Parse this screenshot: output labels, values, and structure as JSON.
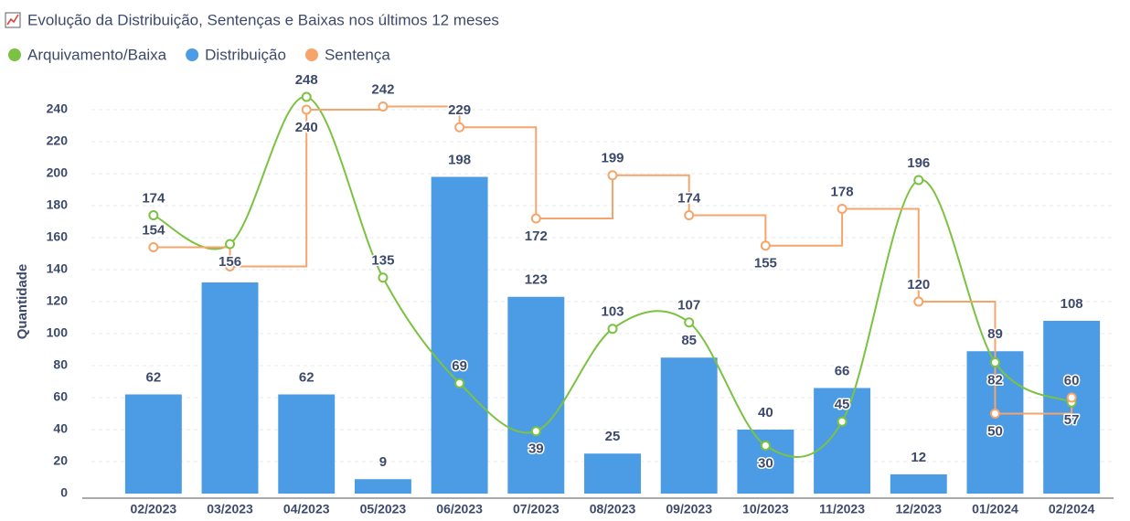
{
  "chart_data": {
    "type": "combo",
    "title": "Evolução da Distribuição, Sentenças e Baixas nos últimos 12 meses",
    "y_label": "Quantidade",
    "categories": [
      "02/2023",
      "03/2023",
      "04/2023",
      "05/2023",
      "06/2023",
      "07/2023",
      "08/2023",
      "09/2023",
      "10/2023",
      "11/2023",
      "12/2023",
      "01/2024",
      "02/2024"
    ],
    "series": [
      {
        "name": "Arquivamento/Baixa",
        "type": "line",
        "smooth": true,
        "color": "#7cc242",
        "values": [
          174,
          156,
          248,
          135,
          69,
          39,
          103,
          107,
          30,
          45,
          196,
          82,
          57
        ]
      },
      {
        "name": "Distribuição",
        "type": "bar",
        "color": "#4b9ce5",
        "values": [
          62,
          132,
          62,
          9,
          198,
          123,
          25,
          85,
          40,
          66,
          12,
          89,
          108
        ],
        "value_labels": [
          "62",
          null,
          "62",
          "9",
          "198",
          "123",
          "25",
          "85",
          "40",
          "66",
          "12",
          "89",
          "108"
        ]
      },
      {
        "name": "Sentença",
        "type": "step",
        "color": "#f5a56b",
        "values": [
          154,
          142,
          240,
          242,
          229,
          172,
          199,
          174,
          155,
          178,
          120,
          50,
          60
        ],
        "value_labels": [
          "154",
          null,
          "240",
          "242",
          "229",
          "172",
          "199",
          "174",
          "155",
          "178",
          "120",
          "50",
          "60"
        ]
      }
    ],
    "ylim": [
      0,
      260
    ],
    "yticks": [
      0,
      20,
      40,
      60,
      80,
      100,
      120,
      140,
      160,
      180,
      200,
      220,
      240
    ],
    "grid": true,
    "legend": "top-left"
  }
}
